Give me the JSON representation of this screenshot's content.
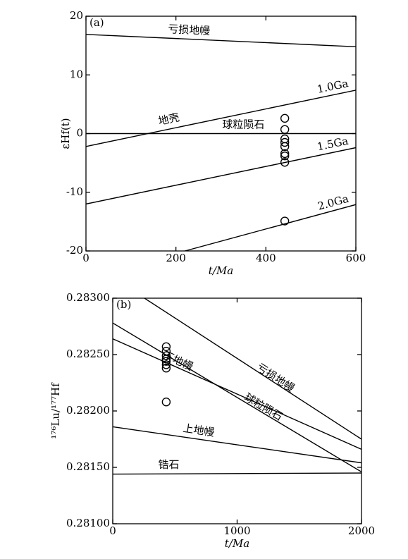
{
  "chart_data": [
    {
      "type": "line",
      "panel_label": "(a)",
      "x_label": "t/Ma",
      "y_label": "εHf(t)",
      "xlim": [
        0,
        600
      ],
      "ylim": [
        -20,
        20
      ],
      "xticks": [
        0,
        200,
        400,
        600
      ],
      "yticks": [
        -20,
        -10,
        0,
        10,
        20
      ],
      "series": [
        {
          "name": "亏损地幔",
          "color": "#000000",
          "x": [
            0,
            600
          ],
          "values": [
            16.9,
            14.8
          ]
        },
        {
          "name": "1.0Ga",
          "color": "#000000",
          "x": [
            0,
            600
          ],
          "values": [
            -2.2,
            7.4
          ]
        },
        {
          "name": "球粒陨石",
          "color": "#000000",
          "x": [
            0,
            600
          ],
          "values": [
            0,
            0
          ]
        },
        {
          "name": "1.5Ga",
          "color": "#000000",
          "x": [
            0,
            600
          ],
          "values": [
            -12.0,
            -2.4
          ]
        },
        {
          "name": "2.0Ga",
          "color": "#000000",
          "x": [
            220,
            600
          ],
          "values": [
            -20,
            -12.1
          ]
        },
        {
          "type": "scatter",
          "color": "#000000",
          "x": [
            442,
            442,
            442,
            442,
            442,
            442,
            442,
            442,
            442
          ],
          "values": [
            2.6,
            0.7,
            -0.9,
            -1.5,
            -2.2,
            -3.4,
            -3.8,
            -4.9,
            -14.9
          ]
        }
      ],
      "annotations": [
        "地壳"
      ]
    },
    {
      "type": "line",
      "panel_label": "(b)",
      "x_label": "t/Ma",
      "y_label": "¹⁷⁶Lu/¹⁷⁷Hf",
      "xlim": [
        0,
        2000
      ],
      "ylim": [
        0.281,
        0.283
      ],
      "xticks": [
        0,
        1000,
        2000
      ],
      "yticks": [
        {
          "value": 0.281,
          "label": "0.28100"
        },
        {
          "value": 0.2815,
          "label": "0.28150"
        },
        {
          "value": 0.282,
          "label": "0.28200"
        },
        {
          "value": 0.2825,
          "label": "0.28250"
        },
        {
          "value": 0.283,
          "label": "0.28300"
        }
      ],
      "series": [
        {
          "name": "亏损地幔",
          "color": "#000000",
          "x": [
            255,
            2000
          ],
          "values": [
            0.283,
            0.28175
          ]
        },
        {
          "name": "球粒陨石",
          "color": "#000000",
          "x": [
            0,
            2000
          ],
          "values": [
            0.28278,
            0.28146
          ]
        },
        {
          "name": "下地幔",
          "color": "#000000",
          "x": [
            0,
            2000
          ],
          "values": [
            0.28264,
            0.28166
          ]
        },
        {
          "name": "上地幔",
          "color": "#000000",
          "x": [
            0,
            2000
          ],
          "values": [
            0.28186,
            0.28154
          ]
        },
        {
          "name": "锆石",
          "color": "#000000",
          "x": [
            0,
            2000
          ],
          "values": [
            0.28144,
            0.28145
          ]
        },
        {
          "type": "scatter",
          "color": "#000000",
          "x": [
            430,
            430,
            430,
            430,
            430,
            430,
            430,
            430
          ],
          "values": [
            0.28257,
            0.28253,
            0.28249,
            0.28246,
            0.28244,
            0.28241,
            0.28238,
            0.28208
          ]
        }
      ]
    }
  ]
}
